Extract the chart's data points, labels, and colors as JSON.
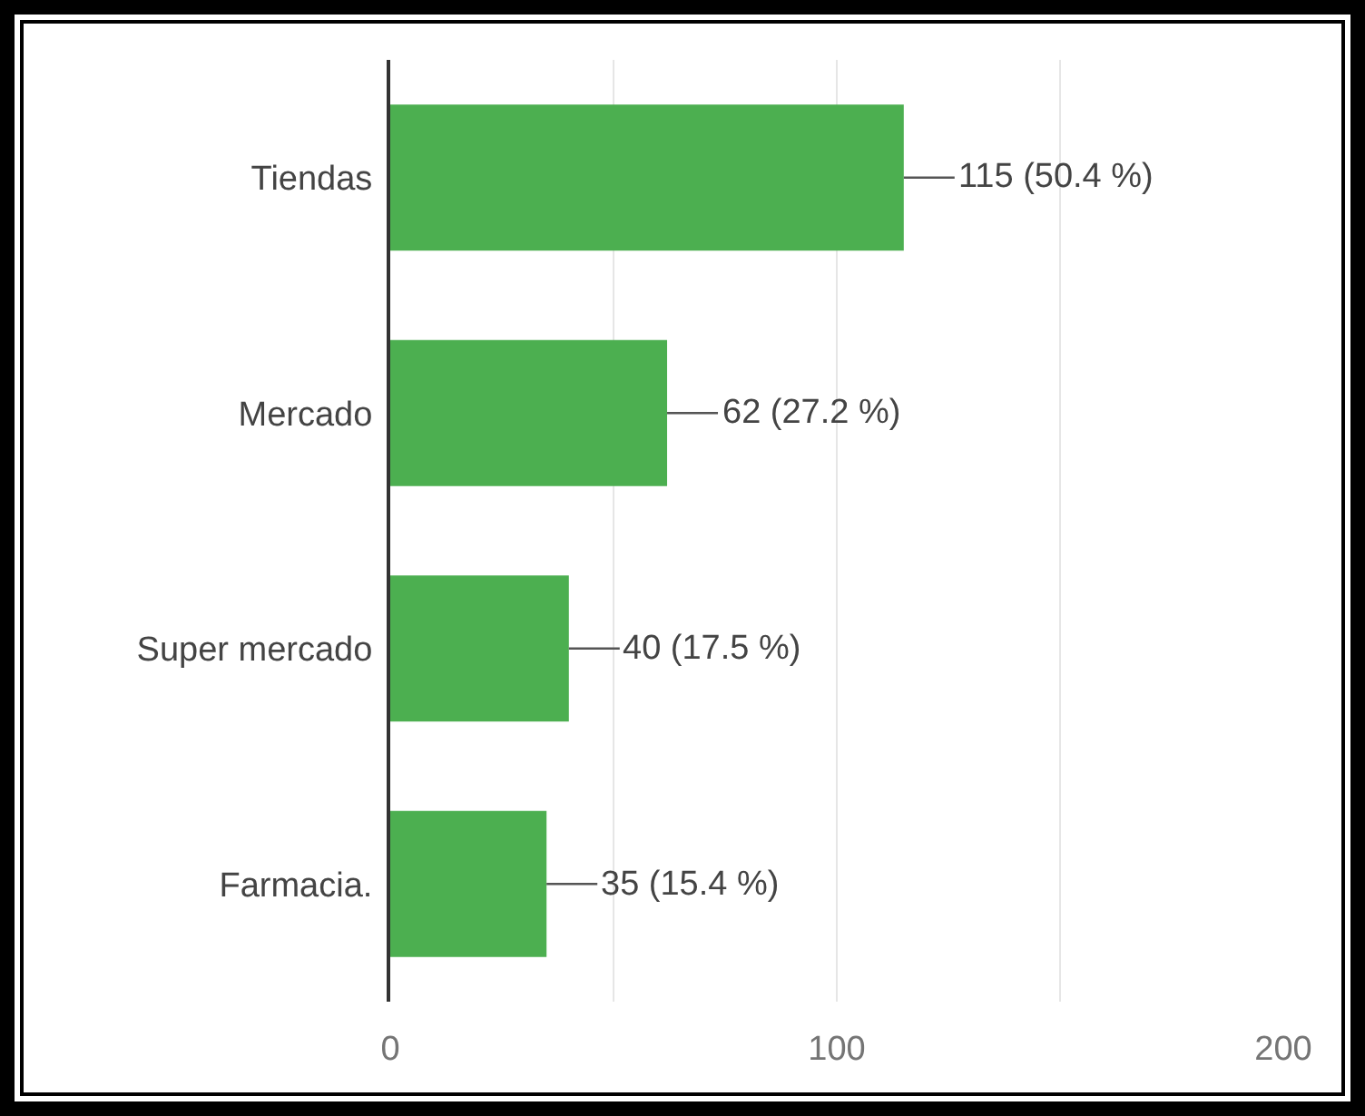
{
  "chart_data": {
    "type": "bar",
    "orientation": "horizontal",
    "categories": [
      "Tiendas",
      "Mercado",
      "Super mercado",
      "Farmacia."
    ],
    "values": [
      115,
      62,
      40,
      35
    ],
    "value_labels": [
      "115 (50.4 %)",
      "62 (27.2 %)",
      "40 (17.5 %)",
      "35 (15.4 %)"
    ],
    "color": "#4caf50",
    "xlim": [
      0,
      200
    ],
    "xticks": [
      0,
      {
        "value": 50,
        "label": null
      },
      100,
      {
        "value": 150,
        "label": null
      },
      200
    ],
    "grid": "x"
  }
}
